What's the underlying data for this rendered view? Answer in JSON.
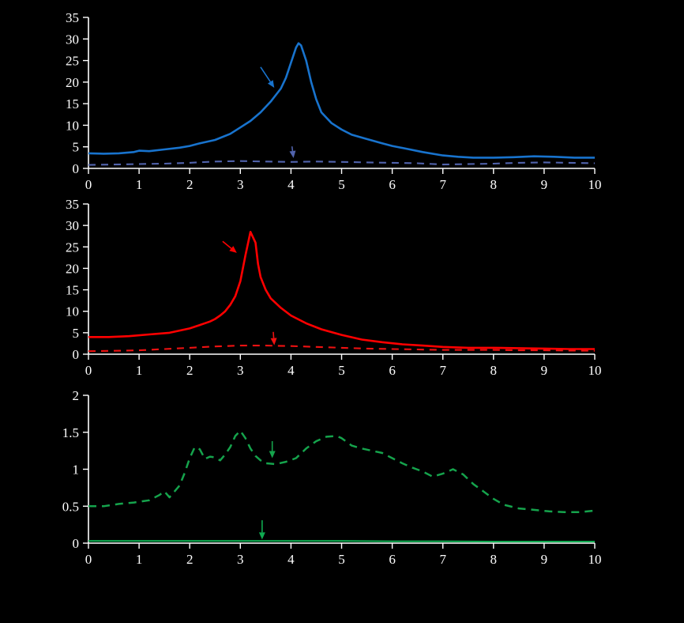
{
  "figure": {
    "background": "#000000",
    "axis_color": "#ffffff"
  },
  "chart_data": [
    {
      "type": "line",
      "panel": "top",
      "title": "",
      "xlabel": "",
      "ylabel": "",
      "xlim": [
        0,
        10
      ],
      "ylim": [
        0,
        35
      ],
      "x_ticks": [
        0,
        1,
        2,
        3,
        4,
        5,
        6,
        7,
        8,
        9,
        10
      ],
      "y_ticks": [
        0,
        5,
        10,
        15,
        20,
        25,
        30,
        35
      ],
      "grid": false,
      "legend": "none",
      "series": [
        {
          "name": "blue-solid-curve",
          "color": "#1873cd",
          "dash": "none",
          "width": 2.6,
          "points": [
            [
              0,
              3.5
            ],
            [
              0.3,
              3.4
            ],
            [
              0.6,
              3.5
            ],
            [
              0.9,
              3.8
            ],
            [
              1.0,
              4.1
            ],
            [
              1.2,
              4.0
            ],
            [
              1.5,
              4.4
            ],
            [
              1.8,
              4.8
            ],
            [
              2.0,
              5.2
            ],
            [
              2.2,
              5.8
            ],
            [
              2.5,
              6.6
            ],
            [
              2.8,
              8.0
            ],
            [
              3.0,
              9.5
            ],
            [
              3.2,
              11.0
            ],
            [
              3.4,
              13.0
            ],
            [
              3.6,
              15.5
            ],
            [
              3.8,
              18.5
            ],
            [
              3.9,
              21.0
            ],
            [
              4.0,
              24.5
            ],
            [
              4.1,
              28.0
            ],
            [
              4.15,
              29.0
            ],
            [
              4.2,
              28.5
            ],
            [
              4.3,
              25.0
            ],
            [
              4.4,
              20.0
            ],
            [
              4.5,
              16.0
            ],
            [
              4.6,
              13.0
            ],
            [
              4.8,
              10.5
            ],
            [
              5.0,
              9.0
            ],
            [
              5.2,
              7.8
            ],
            [
              5.5,
              6.8
            ],
            [
              5.8,
              5.8
            ],
            [
              6.0,
              5.2
            ],
            [
              6.3,
              4.5
            ],
            [
              6.6,
              3.8
            ],
            [
              7.0,
              3.0
            ],
            [
              7.3,
              2.7
            ],
            [
              7.6,
              2.5
            ],
            [
              8.0,
              2.5
            ],
            [
              8.4,
              2.6
            ],
            [
              8.8,
              2.8
            ],
            [
              9.2,
              2.7
            ],
            [
              9.6,
              2.5
            ],
            [
              10,
              2.5
            ]
          ]
        },
        {
          "name": "blue-dashed-curve",
          "color": "#5163ac",
          "dash": "9 7",
          "width": 2.1,
          "points": [
            [
              0,
              0.8
            ],
            [
              0.5,
              0.9
            ],
            [
              1.0,
              1.0
            ],
            [
              1.5,
              1.1
            ],
            [
              2.0,
              1.3
            ],
            [
              2.5,
              1.6
            ],
            [
              3.0,
              1.7
            ],
            [
              3.5,
              1.6
            ],
            [
              4.0,
              1.5
            ],
            [
              4.5,
              1.6
            ],
            [
              5.0,
              1.5
            ],
            [
              5.5,
              1.4
            ],
            [
              6.0,
              1.3
            ],
            [
              6.5,
              1.2
            ],
            [
              7.0,
              0.9
            ],
            [
              7.5,
              1.0
            ],
            [
              8.0,
              1.1
            ],
            [
              8.5,
              1.3
            ],
            [
              9.0,
              1.4
            ],
            [
              9.5,
              1.3
            ],
            [
              10,
              1.2
            ]
          ]
        }
      ],
      "annotations": [
        {
          "type": "arrow",
          "color": "#1873cd",
          "from": [
            3.4,
            23.5
          ],
          "to": [
            3.67,
            18.7
          ]
        },
        {
          "type": "arrow",
          "color": "#5163ac",
          "from": [
            4.02,
            5.1
          ],
          "to": [
            4.05,
            2.4
          ]
        }
      ]
    },
    {
      "type": "line",
      "panel": "middle",
      "title": "",
      "xlabel": "",
      "ylabel": "",
      "xlim": [
        0,
        10
      ],
      "ylim": [
        0,
        35
      ],
      "x_ticks": [
        0,
        1,
        2,
        3,
        4,
        5,
        6,
        7,
        8,
        9,
        10
      ],
      "y_ticks": [
        0,
        5,
        10,
        15,
        20,
        25,
        30,
        35
      ],
      "grid": false,
      "legend": "none",
      "series": [
        {
          "name": "red-solid-curve",
          "color": "#ff0000",
          "dash": "none",
          "width": 2.6,
          "points": [
            [
              0,
              4.0
            ],
            [
              0.4,
              4.0
            ],
            [
              0.8,
              4.2
            ],
            [
              1.2,
              4.6
            ],
            [
              1.6,
              5.0
            ],
            [
              2.0,
              6.0
            ],
            [
              2.2,
              6.8
            ],
            [
              2.4,
              7.6
            ],
            [
              2.5,
              8.2
            ],
            [
              2.6,
              9.0
            ],
            [
              2.7,
              10.0
            ],
            [
              2.8,
              11.5
            ],
            [
              2.9,
              13.5
            ],
            [
              3.0,
              17.0
            ],
            [
              3.1,
              23.0
            ],
            [
              3.2,
              28.5
            ],
            [
              3.3,
              26.0
            ],
            [
              3.35,
              21.0
            ],
            [
              3.4,
              18.0
            ],
            [
              3.5,
              15.0
            ],
            [
              3.6,
              13.0
            ],
            [
              3.8,
              10.8
            ],
            [
              4.0,
              9.0
            ],
            [
              4.3,
              7.2
            ],
            [
              4.6,
              5.8
            ],
            [
              5.0,
              4.5
            ],
            [
              5.4,
              3.4
            ],
            [
              5.8,
              2.8
            ],
            [
              6.2,
              2.3
            ],
            [
              6.6,
              2.0
            ],
            [
              7.0,
              1.7
            ],
            [
              7.5,
              1.5
            ],
            [
              8.0,
              1.5
            ],
            [
              8.5,
              1.4
            ],
            [
              9.0,
              1.3
            ],
            [
              9.5,
              1.2
            ],
            [
              10,
              1.2
            ]
          ]
        },
        {
          "name": "red-dashed-curve",
          "color": "#ee1111",
          "dash": "9 7",
          "width": 2.1,
          "points": [
            [
              0,
              0.7
            ],
            [
              0.5,
              0.8
            ],
            [
              1.0,
              0.9
            ],
            [
              1.5,
              1.2
            ],
            [
              2.0,
              1.5
            ],
            [
              2.5,
              1.8
            ],
            [
              3.0,
              2.0
            ],
            [
              3.5,
              2.0
            ],
            [
              4.0,
              1.9
            ],
            [
              4.5,
              1.7
            ],
            [
              5.0,
              1.5
            ],
            [
              5.5,
              1.3
            ],
            [
              6.0,
              1.2
            ],
            [
              6.5,
              1.1
            ],
            [
              7.0,
              1.0
            ],
            [
              7.5,
              1.0
            ],
            [
              8.0,
              1.0
            ],
            [
              8.5,
              0.9
            ],
            [
              9.0,
              0.9
            ],
            [
              9.5,
              0.85
            ],
            [
              10,
              0.8
            ]
          ]
        }
      ],
      "annotations": [
        {
          "type": "arrow",
          "color": "#ff0000",
          "from": [
            2.65,
            26.3
          ],
          "to": [
            2.93,
            23.6
          ]
        },
        {
          "type": "arrow",
          "color": "#ee1111",
          "from": [
            3.65,
            5.2
          ],
          "to": [
            3.67,
            2.1
          ]
        }
      ]
    },
    {
      "type": "line",
      "panel": "bottom",
      "title": "",
      "xlabel": "",
      "ylabel": "",
      "xlim": [
        0,
        10
      ],
      "ylim": [
        0,
        2
      ],
      "x_ticks": [
        0,
        1,
        2,
        3,
        4,
        5,
        6,
        7,
        8,
        9,
        10
      ],
      "y_ticks": [
        0,
        0.5,
        1,
        1.5,
        2
      ],
      "grid": false,
      "legend": "none",
      "series": [
        {
          "name": "green-dashed-curve",
          "color": "#15a34c",
          "dash": "10 7",
          "width": 2.5,
          "points": [
            [
              0,
              0.5
            ],
            [
              0.3,
              0.5
            ],
            [
              0.6,
              0.53
            ],
            [
              0.9,
              0.55
            ],
            [
              1.2,
              0.58
            ],
            [
              1.4,
              0.65
            ],
            [
              1.5,
              0.7
            ],
            [
              1.6,
              0.62
            ],
            [
              1.8,
              0.78
            ],
            [
              1.9,
              0.95
            ],
            [
              2.0,
              1.15
            ],
            [
              2.1,
              1.3
            ],
            [
              2.2,
              1.27
            ],
            [
              2.3,
              1.14
            ],
            [
              2.4,
              1.17
            ],
            [
              2.5,
              1.16
            ],
            [
              2.6,
              1.12
            ],
            [
              2.7,
              1.2
            ],
            [
              2.8,
              1.3
            ],
            [
              2.9,
              1.45
            ],
            [
              3.0,
              1.52
            ],
            [
              3.1,
              1.42
            ],
            [
              3.2,
              1.28
            ],
            [
              3.3,
              1.18
            ],
            [
              3.4,
              1.12
            ],
            [
              3.5,
              1.08
            ],
            [
              3.7,
              1.07
            ],
            [
              3.9,
              1.1
            ],
            [
              4.1,
              1.15
            ],
            [
              4.3,
              1.28
            ],
            [
              4.5,
              1.38
            ],
            [
              4.7,
              1.44
            ],
            [
              4.9,
              1.45
            ],
            [
              5.0,
              1.42
            ],
            [
              5.2,
              1.32
            ],
            [
              5.4,
              1.28
            ],
            [
              5.6,
              1.25
            ],
            [
              5.8,
              1.22
            ],
            [
              6.0,
              1.15
            ],
            [
              6.2,
              1.08
            ],
            [
              6.4,
              1.02
            ],
            [
              6.6,
              0.97
            ],
            [
              6.8,
              0.9
            ],
            [
              7.0,
              0.94
            ],
            [
              7.2,
              1.0
            ],
            [
              7.4,
              0.93
            ],
            [
              7.6,
              0.8
            ],
            [
              7.8,
              0.7
            ],
            [
              8.0,
              0.6
            ],
            [
              8.2,
              0.52
            ],
            [
              8.5,
              0.47
            ],
            [
              8.8,
              0.45
            ],
            [
              9.1,
              0.43
            ],
            [
              9.4,
              0.42
            ],
            [
              9.7,
              0.42
            ],
            [
              10,
              0.44
            ]
          ]
        },
        {
          "name": "green-solid-curve",
          "color": "#0faa50",
          "dash": "none",
          "width": 2.1,
          "points": [
            [
              0,
              0.03
            ],
            [
              1,
              0.03
            ],
            [
              2,
              0.03
            ],
            [
              3,
              0.03
            ],
            [
              4,
              0.03
            ],
            [
              5,
              0.03
            ],
            [
              6,
              0.025
            ],
            [
              7,
              0.025
            ],
            [
              8,
              0.02
            ],
            [
              9,
              0.02
            ],
            [
              10,
              0.02
            ]
          ]
        }
      ],
      "annotations": [
        {
          "type": "arrow",
          "color": "#15a34c",
          "from": [
            3.63,
            1.38
          ],
          "to": [
            3.63,
            1.15
          ]
        },
        {
          "type": "arrow",
          "color": "#0faa50",
          "from": [
            3.43,
            0.31
          ],
          "to": [
            3.43,
            0.05
          ]
        }
      ]
    }
  ]
}
